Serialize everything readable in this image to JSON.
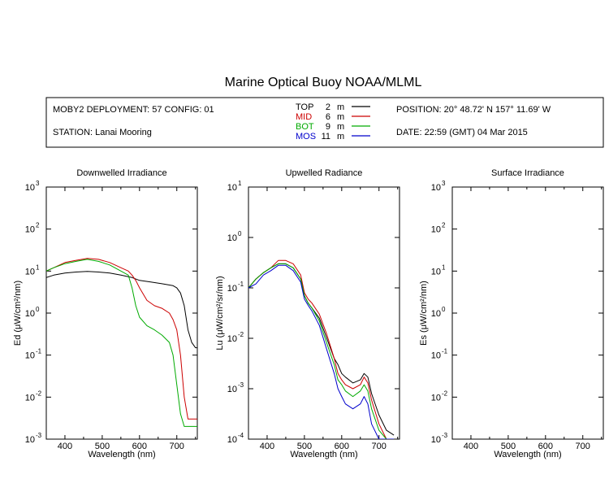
{
  "title": "Marine Optical Buoy NOAA/MLML",
  "info": {
    "deployment": "MOBY2 DEPLOYMENT: 57 CONFIG: 01",
    "station": "STATION: Lanai Mooring",
    "position": "POSITION: 20° 48.72' N   157° 11.69' W",
    "date": "DATE: 22:59 (GMT) 04 Mar 2015"
  },
  "legend": [
    {
      "name": "TOP",
      "depth": "2",
      "unit": "m",
      "color": "#000000"
    },
    {
      "name": "MID",
      "depth": "6",
      "unit": "m",
      "color": "#cc0000"
    },
    {
      "name": "BOT",
      "depth": "9",
      "unit": "m",
      "color": "#00aa00"
    },
    {
      "name": "MOS",
      "depth": "11",
      "unit": "m",
      "color": "#0000cc"
    }
  ],
  "chart_data": [
    {
      "type": "line",
      "title": "Downwelled Irradiance",
      "xlabel": "Wavelength (nm)",
      "ylabel": "Ed  (μW/cm²/nm)",
      "xlim": [
        350,
        755
      ],
      "ylim": [
        0.001,
        1000
      ],
      "yscale": "log",
      "xticks": [
        400,
        500,
        600,
        700
      ],
      "yticks_exp": [
        "-3",
        "-2",
        "-1",
        "0",
        "1",
        "2",
        "3"
      ],
      "series": [
        {
          "name": "TOP",
          "color": "#000000",
          "x": [
            350,
            370,
            400,
            430,
            460,
            490,
            520,
            550,
            580,
            600,
            630,
            660,
            690,
            700,
            710,
            720,
            730,
            740,
            750,
            755
          ],
          "y": [
            7,
            8,
            9,
            9.5,
            9.8,
            9.5,
            9,
            8,
            7,
            6,
            5.5,
            5,
            4.5,
            4,
            3,
            1.5,
            0.4,
            0.2,
            0.15,
            0.15
          ]
        },
        {
          "name": "MID",
          "color": "#cc0000",
          "x": [
            350,
            370,
            400,
            430,
            460,
            490,
            520,
            550,
            570,
            580,
            590,
            600,
            620,
            640,
            660,
            680,
            690,
            700,
            710,
            720,
            730,
            740,
            750,
            755
          ],
          "y": [
            10,
            12,
            16,
            18,
            20,
            19,
            16,
            12,
            10,
            8,
            6,
            4,
            2,
            1.5,
            1.3,
            1,
            0.7,
            0.4,
            0.1,
            0.01,
            0.003,
            0.003,
            0.003,
            0.003
          ]
        },
        {
          "name": "BOT",
          "color": "#00aa00",
          "x": [
            350,
            370,
            400,
            430,
            460,
            490,
            520,
            550,
            570,
            580,
            590,
            600,
            620,
            640,
            660,
            680,
            690,
            700,
            710,
            720,
            730,
            740,
            750,
            755
          ],
          "y": [
            10,
            12,
            15,
            17,
            19,
            17,
            14,
            10,
            8,
            4,
            1.5,
            0.8,
            0.5,
            0.4,
            0.3,
            0.2,
            0.1,
            0.02,
            0.004,
            0.002,
            0.002,
            0.002,
            0.002,
            0.002
          ]
        }
      ]
    },
    {
      "type": "line",
      "title": "Upwelled Radiance",
      "xlabel": "Wavelength (nm)",
      "ylabel": "Lu  (μW/cm²/sr/nm)",
      "xlim": [
        350,
        755
      ],
      "ylim": [
        0.0001,
        10
      ],
      "yscale": "log",
      "xticks": [
        400,
        500,
        600,
        700
      ],
      "yticks_exp": [
        "-4",
        "-3",
        "-2",
        "-1",
        "0",
        "1"
      ],
      "series": [
        {
          "name": "TOP",
          "color": "#000000",
          "x": [
            350,
            370,
            390,
            410,
            430,
            450,
            470,
            490,
            500,
            510,
            520,
            540,
            560,
            580,
            590,
            600,
            610,
            630,
            650,
            660,
            670,
            680,
            700,
            720,
            740
          ],
          "y": [
            0.1,
            0.15,
            0.2,
            0.25,
            0.3,
            0.3,
            0.25,
            0.15,
            0.07,
            0.05,
            0.04,
            0.025,
            0.01,
            0.004,
            0.003,
            0.002,
            0.0017,
            0.0013,
            0.0015,
            0.002,
            0.0017,
            0.0008,
            0.0003,
            0.00015,
            0.00012
          ]
        },
        {
          "name": "MID",
          "color": "#cc0000",
          "x": [
            350,
            370,
            390,
            410,
            430,
            450,
            470,
            490,
            500,
            510,
            520,
            540,
            560,
            580,
            590,
            600,
            610,
            630,
            650,
            660,
            670,
            680,
            700,
            720,
            740
          ],
          "y": [
            0.1,
            0.15,
            0.2,
            0.25,
            0.35,
            0.35,
            0.3,
            0.18,
            0.08,
            0.06,
            0.05,
            0.03,
            0.012,
            0.004,
            0.002,
            0.0015,
            0.0012,
            0.001,
            0.0012,
            0.0017,
            0.0013,
            0.0006,
            0.0002,
            0.0001,
            0.0001
          ]
        },
        {
          "name": "BOT",
          "color": "#00aa00",
          "x": [
            350,
            370,
            390,
            410,
            430,
            450,
            470,
            490,
            500,
            510,
            520,
            540,
            560,
            580,
            590,
            600,
            610,
            630,
            650,
            660,
            670,
            680,
            700,
            720,
            740
          ],
          "y": [
            0.1,
            0.15,
            0.2,
            0.25,
            0.3,
            0.3,
            0.25,
            0.15,
            0.07,
            0.05,
            0.04,
            0.022,
            0.008,
            0.003,
            0.0015,
            0.0012,
            0.0009,
            0.0007,
            0.0009,
            0.0012,
            0.0009,
            0.0004,
            0.00015,
            0.0001,
            0.0001
          ]
        },
        {
          "name": "MOS",
          "color": "#0000cc",
          "x": [
            350,
            370,
            390,
            410,
            430,
            450,
            470,
            490,
            500,
            510,
            520,
            540,
            560,
            580,
            590,
            600,
            610,
            630,
            650,
            660,
            670,
            680,
            700,
            720,
            740
          ],
          "y": [
            0.1,
            0.12,
            0.18,
            0.22,
            0.28,
            0.28,
            0.22,
            0.13,
            0.06,
            0.045,
            0.035,
            0.018,
            0.006,
            0.002,
            0.001,
            0.0007,
            0.0005,
            0.0004,
            0.0005,
            0.0007,
            0.0005,
            0.0002,
            0.0001,
            0.0001,
            0.0001
          ]
        }
      ]
    },
    {
      "type": "line",
      "title": "Surface Irradiance",
      "xlabel": "Wavelength (nm)",
      "ylabel": "Es  (μW/cm²/nm)",
      "xlim": [
        350,
        755
      ],
      "ylim": [
        0.001,
        1000
      ],
      "yscale": "log",
      "xticks": [
        400,
        500,
        600,
        700
      ],
      "yticks_exp": [
        "-3",
        "-2",
        "-1",
        "0",
        "1",
        "2",
        "3"
      ],
      "series": []
    }
  ]
}
